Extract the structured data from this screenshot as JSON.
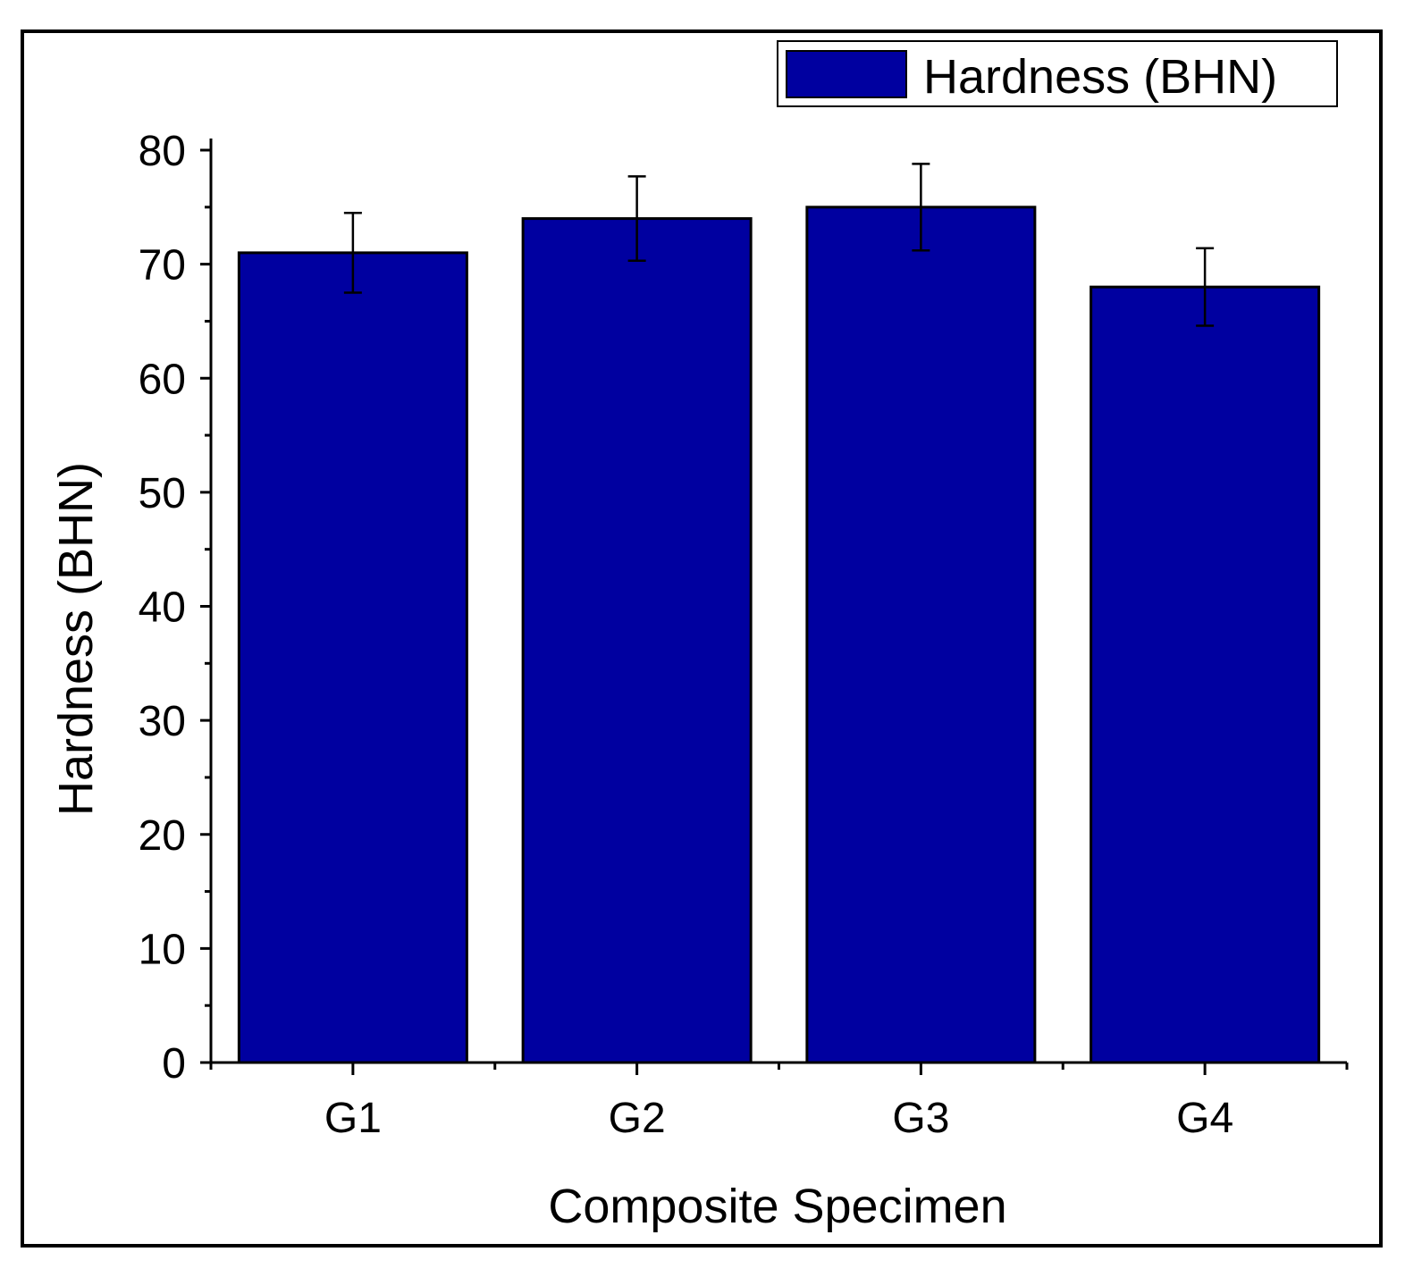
{
  "chart_data": {
    "type": "bar",
    "categories": [
      "G1",
      "G2",
      "G3",
      "G4"
    ],
    "series": [
      {
        "name": "Hardness (BHN)",
        "values": [
          71,
          74,
          75,
          68
        ],
        "error": [
          3.5,
          3.7,
          3.8,
          3.4
        ],
        "color": "#0000A0"
      }
    ],
    "xlabel": "Composite Specimen",
    "ylabel": "Hardness (BHN)",
    "ylim": [
      0,
      80
    ],
    "yticks": [
      "0",
      "10",
      "20",
      "30",
      "40",
      "50",
      "60",
      "70",
      "80"
    ],
    "grid": false,
    "legend_position": "top-right"
  }
}
